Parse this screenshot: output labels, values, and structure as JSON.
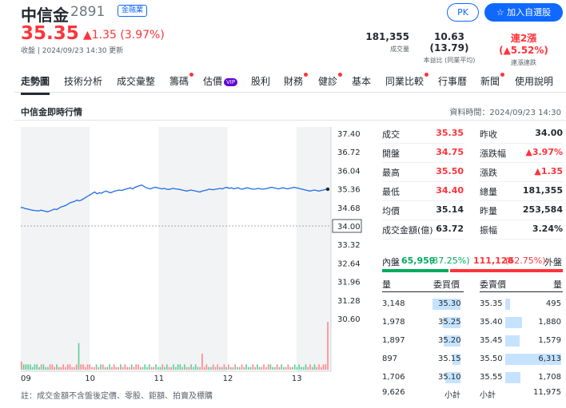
{
  "header": {
    "name": "中信金",
    "code": "2891",
    "sector": "金融業",
    "price": "35.35",
    "change": "▲1.35 (3.97%)",
    "timestamp": "收盤 | 2024/09/23 14:30 更新",
    "stats": {
      "volume": {
        "value": "181,355",
        "label": "成交量"
      },
      "pe": {
        "value": "10.63 (13.79)",
        "label": "本益比 (同業平均)"
      },
      "streak": {
        "value": "連2漲 (▲5.52%)",
        "label": "連漲連跌"
      }
    },
    "pk_label": "PK",
    "watch_label": "☆ 加入自選股"
  },
  "tabs": [
    {
      "label": "走勢圖",
      "active": true,
      "dot": false
    },
    {
      "label": "技術分析",
      "dot": false
    },
    {
      "label": "成交彙整",
      "dot": false
    },
    {
      "label": "籌碼",
      "dot": true
    },
    {
      "label": "估價",
      "dot": false,
      "vip": "VIP"
    },
    {
      "label": "股利",
      "dot": false
    },
    {
      "label": "財務",
      "dot": true
    },
    {
      "label": "健診",
      "dot": true
    },
    {
      "label": "基本",
      "dot": false
    },
    {
      "label": "同業比較",
      "dot": true
    },
    {
      "label": "行事曆",
      "dot": false
    },
    {
      "label": "新聞",
      "dot": true
    },
    {
      "label": "使用說明",
      "dot": false
    }
  ],
  "section": {
    "title": "中信金即時行情",
    "data_time": "資料時間：2024/09/23 14:30"
  },
  "chart_data": {
    "type": "line",
    "x_ticks": [
      "09",
      "10",
      "11",
      "12",
      "13"
    ],
    "y_ticks": [
      "37.40",
      "36.72",
      "36.04",
      "35.36",
      "34.68",
      "34.00",
      "33.32",
      "32.64",
      "31.96",
      "31.28",
      "30.60"
    ],
    "ylim": [
      30.6,
      37.4
    ],
    "reference": 34.0,
    "reference_label": "34.00",
    "series": [
      {
        "values": [
          34.68,
          34.67,
          34.64,
          34.62,
          34.6,
          34.58,
          34.57,
          34.56,
          34.55,
          34.58,
          34.56,
          34.54,
          34.52,
          34.55,
          34.58,
          34.62,
          34.6,
          34.65,
          34.7,
          34.72,
          34.75,
          34.8,
          34.85,
          34.88,
          34.9,
          34.95,
          34.92,
          34.95,
          35.0,
          35.05,
          35.1,
          35.15,
          35.2,
          35.25,
          35.18,
          35.22,
          35.2,
          35.25,
          35.28,
          35.25,
          35.22,
          35.25,
          35.28,
          35.3,
          35.32,
          35.3,
          35.33,
          35.35,
          35.38,
          35.4,
          35.36,
          35.42,
          35.45,
          35.48,
          35.5,
          35.45,
          35.4,
          35.38,
          35.36,
          35.4,
          35.42,
          35.4,
          35.38,
          35.36,
          35.38,
          35.35,
          35.34,
          35.36,
          35.38,
          35.36,
          35.35,
          35.34,
          35.32,
          35.3,
          35.28,
          35.3,
          35.32,
          35.3,
          35.28,
          35.26,
          35.25,
          35.28,
          35.3,
          35.32,
          35.35,
          35.34,
          35.33,
          35.35,
          35.36,
          35.38,
          35.36,
          35.4,
          35.42,
          35.38,
          35.4,
          35.36,
          35.38,
          35.4,
          35.36,
          35.35,
          35.38,
          35.4,
          35.38,
          35.36,
          35.35,
          35.36,
          35.38,
          35.36,
          35.35,
          35.36,
          35.38,
          35.4,
          35.42,
          35.4,
          35.38,
          35.36,
          35.38,
          35.4,
          35.38,
          35.36,
          35.38,
          35.4,
          35.42,
          35.4,
          35.38,
          35.36,
          35.34,
          35.32,
          35.3,
          35.28,
          35.3,
          35.32,
          35.3,
          35.28,
          35.3,
          35.32,
          35.34,
          35.35
        ]
      }
    ],
    "volume": [
      3,
      2,
      2,
      2,
      2,
      1,
      2,
      2,
      1,
      2,
      2,
      1,
      1,
      2,
      2,
      1,
      2,
      1,
      1,
      2,
      1,
      2,
      2,
      1,
      1,
      2,
      10,
      2,
      2,
      1,
      2,
      2,
      1,
      1,
      2,
      1,
      2,
      2,
      1,
      1,
      2,
      1,
      2,
      1,
      1,
      2,
      1,
      2,
      1,
      1,
      2,
      1,
      2,
      2,
      1,
      1,
      2,
      1,
      2,
      1,
      1,
      2,
      1,
      1,
      2,
      1,
      2,
      1,
      1,
      2,
      1,
      2,
      2,
      1,
      2,
      1,
      1,
      2,
      1,
      2,
      1,
      1,
      6,
      1,
      2,
      1,
      1,
      2,
      1,
      2,
      1,
      1,
      2,
      1,
      2,
      1,
      1,
      2,
      1,
      1,
      2,
      1,
      2,
      1,
      1,
      2,
      1,
      2,
      1,
      1,
      2,
      1,
      2,
      2,
      1,
      1,
      2,
      1,
      2,
      1,
      1,
      2,
      1,
      1,
      2,
      1,
      2,
      1,
      1,
      2,
      1,
      2,
      1,
      2,
      1,
      2,
      1,
      2,
      2,
      18
    ]
  },
  "footnote": "註：成交金額不含盤後定價、零股、鉅額、拍賣及標購",
  "quote": {
    "left": [
      {
        "label": "成交",
        "value": "35.35",
        "color": "up"
      },
      {
        "label": "開盤",
        "value": "34.75",
        "color": "up"
      },
      {
        "label": "最高",
        "value": "35.50",
        "color": "up"
      },
      {
        "label": "最低",
        "value": "34.40",
        "color": "up"
      },
      {
        "label": "均價",
        "value": "35.14",
        "color": "dark"
      },
      {
        "label": "成交金額(億)",
        "value": "63.72",
        "color": "dark"
      }
    ],
    "right": [
      {
        "label": "昨收",
        "value": "34.00",
        "color": "dark"
      },
      {
        "label": "漲跌幅",
        "value": "▲3.97%",
        "color": "up"
      },
      {
        "label": "漲跌",
        "value": "▲1.35",
        "color": "up"
      },
      {
        "label": "總量",
        "value": "181,355",
        "color": "dark"
      },
      {
        "label": "昨量",
        "value": "253,584",
        "color": "dark"
      },
      {
        "label": "振幅",
        "value": "3.24%",
        "color": "dark"
      }
    ]
  },
  "inout": {
    "in_label": "內盤",
    "in_value": "65,959",
    "in_pct": "(37.25%)",
    "out_value": "111,128",
    "out_pct": "(62.75%)",
    "out_label": "外盤",
    "in_fraction": 0.3725
  },
  "orderbook": {
    "headers": {
      "qty_left": "量",
      "bid": "委買價",
      "ask": "委賣價",
      "qty_right": "量"
    },
    "bids": [
      {
        "qty": "3,148",
        "price": "35.30",
        "fill": 0.55
      },
      {
        "qty": "1,978",
        "price": "35.25",
        "fill": 0.35
      },
      {
        "qty": "1,897",
        "price": "35.20",
        "fill": 0.33
      },
      {
        "qty": "897",
        "price": "35.15",
        "fill": 0.15
      },
      {
        "qty": "1,706",
        "price": "35.10",
        "fill": 0.3
      }
    ],
    "asks": [
      {
        "price": "35.35",
        "qty": "495",
        "fill": 0.08
      },
      {
        "price": "35.40",
        "qty": "1,880",
        "fill": 0.3
      },
      {
        "price": "35.45",
        "qty": "1,579",
        "fill": 0.25
      },
      {
        "price": "35.50",
        "qty": "6,313",
        "fill": 1.0
      },
      {
        "price": "35.55",
        "qty": "1,708",
        "fill": 0.27
      }
    ],
    "bid_total": "9,626",
    "bid_total_label": "小計",
    "ask_total_label": "小計",
    "ask_total": "11,975"
  },
  "colors": {
    "up": "#ff333a",
    "down": "#00ab5e",
    "accent": "#0f69ff",
    "line": "#1e6ce6",
    "book": "#c5e3ff"
  }
}
